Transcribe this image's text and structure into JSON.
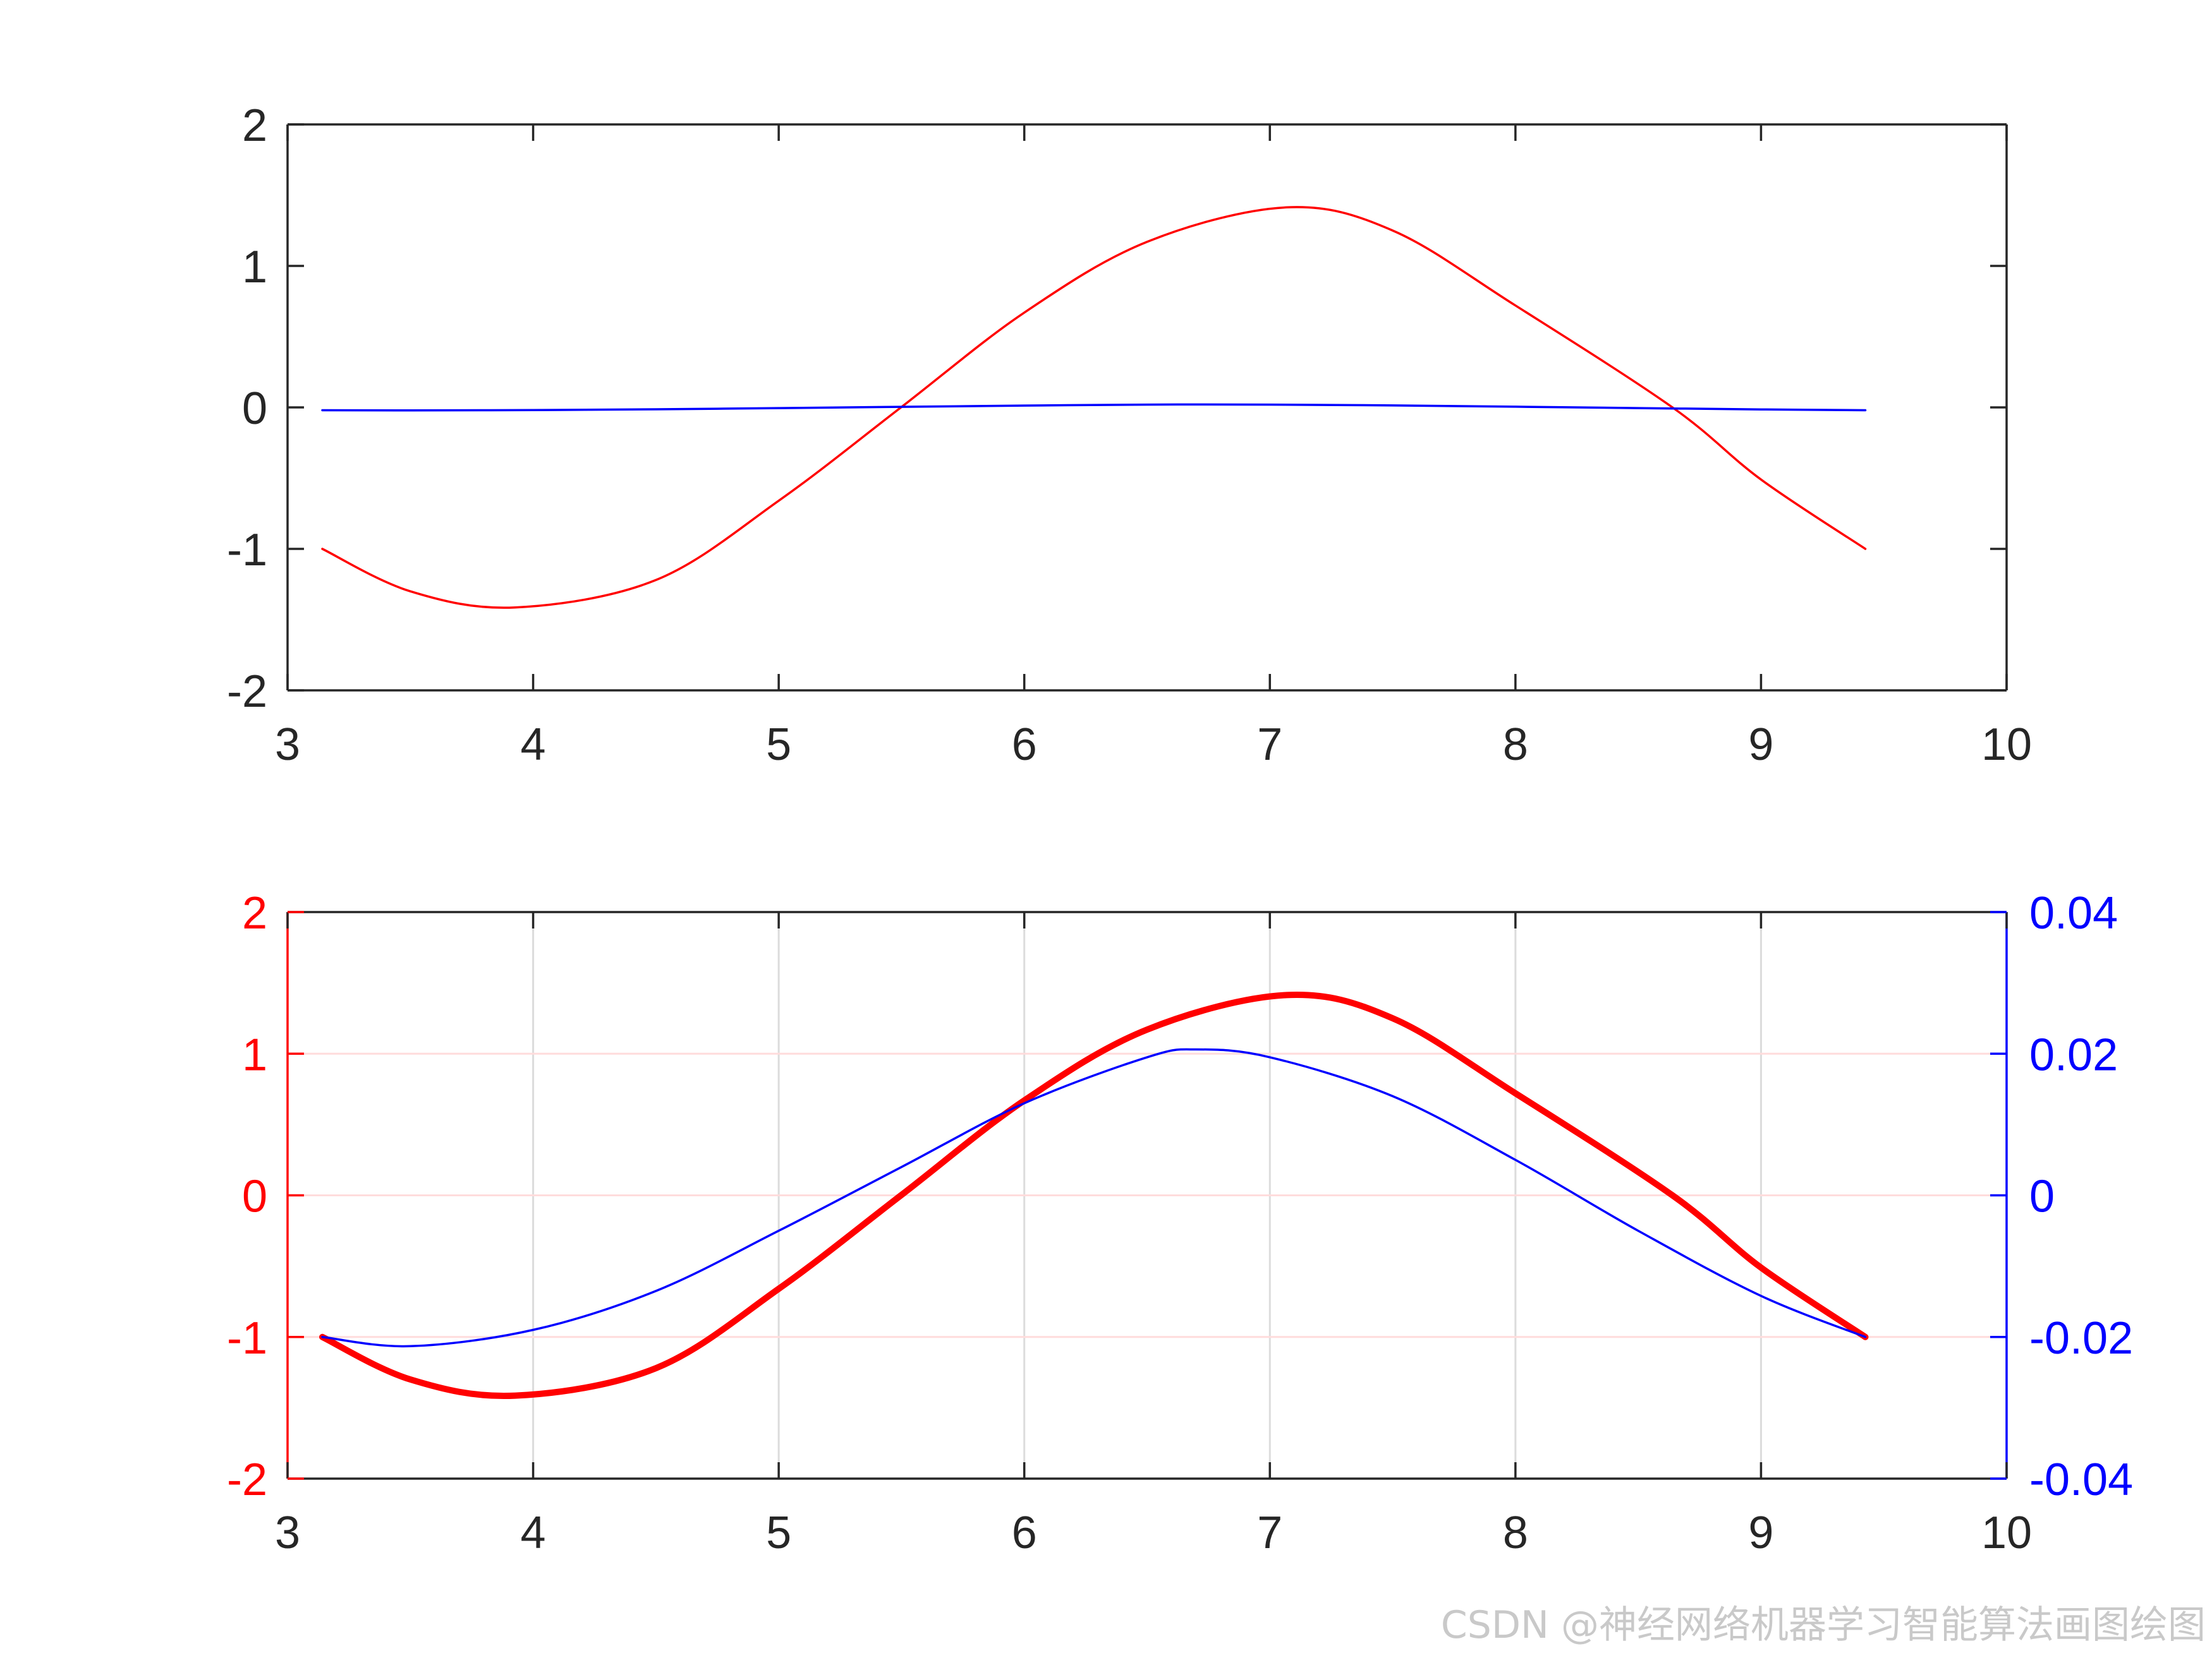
{
  "colors": {
    "axis": "#262626",
    "red": "#ff0000",
    "blue": "#0000ff",
    "grid": "#dcdcdc",
    "grid_red": "#ffdcdc"
  },
  "chart_data": [
    {
      "type": "line",
      "panel": "top",
      "xlim": [
        3,
        10
      ],
      "ylim": [
        -2,
        2
      ],
      "x_ticks": [
        "3",
        "4",
        "5",
        "6",
        "7",
        "8",
        "9",
        "10"
      ],
      "y_ticks": [
        "-2",
        "-1",
        "0",
        "1",
        "2"
      ],
      "grid": false,
      "series": [
        {
          "color": "#ff0000",
          "line_width": "thin",
          "x": [
            3.1416,
            3.5,
            3.927,
            4.5,
            5.0,
            5.4978,
            6.0,
            6.5,
            7.0686,
            7.5,
            8.0,
            8.6394,
            9.0,
            9.4248
          ],
          "y": [
            -1.0,
            -1.3,
            -1.414,
            -1.22,
            -0.66,
            0.0,
            0.67,
            1.17,
            1.414,
            1.25,
            0.72,
            0.0,
            -0.51,
            -1.0
          ]
        },
        {
          "color": "#0000ff",
          "line_width": "thin",
          "x": [
            3.1416,
            3.5,
            4.0,
            4.5,
            5.0,
            5.5,
            6.0,
            6.5,
            6.7,
            7.0,
            7.5,
            8.0,
            8.5,
            9.0,
            9.4248
          ],
          "y": [
            -0.02,
            -0.0213,
            -0.019,
            -0.0135,
            -0.005,
            0.004,
            0.013,
            0.0195,
            0.0206,
            0.0195,
            0.014,
            0.005,
            -0.005,
            -0.0142,
            -0.02
          ]
        }
      ]
    },
    {
      "type": "line",
      "panel": "bottom",
      "xlim": [
        3,
        10
      ],
      "ylim_left": [
        -2,
        2
      ],
      "ylim_right": [
        -0.04,
        0.04
      ],
      "x_ticks": [
        "3",
        "4",
        "5",
        "6",
        "7",
        "8",
        "9",
        "10"
      ],
      "y_ticks_left": [
        "-2",
        "-1",
        "0",
        "1",
        "2"
      ],
      "y_ticks_right": [
        "-0.04",
        "-0.02",
        "0",
        "0.02",
        "0.04"
      ],
      "grid": true,
      "series": [
        {
          "axis": "left",
          "color": "#ff0000",
          "line_width": "thick",
          "x": [
            3.1416,
            3.5,
            3.927,
            4.5,
            5.0,
            5.4978,
            6.0,
            6.5,
            7.0686,
            7.5,
            8.0,
            8.6394,
            9.0,
            9.4248
          ],
          "y": [
            -1.0,
            -1.3,
            -1.414,
            -1.22,
            -0.66,
            0.0,
            0.67,
            1.17,
            1.414,
            1.25,
            0.72,
            0.0,
            -0.51,
            -1.0
          ]
        },
        {
          "axis": "right",
          "color": "#0000ff",
          "line_width": "thin",
          "x": [
            3.1416,
            3.5,
            4.0,
            4.5,
            5.0,
            5.5,
            6.0,
            6.5,
            6.7,
            7.0,
            7.5,
            8.0,
            8.5,
            9.0,
            9.4248
          ],
          "y": [
            -0.02,
            -0.0213,
            -0.019,
            -0.0135,
            -0.005,
            0.004,
            0.013,
            0.0195,
            0.0206,
            0.0195,
            0.014,
            0.005,
            -0.005,
            -0.0142,
            -0.02
          ]
        }
      ]
    }
  ],
  "watermark": "CSDN @神经网络机器学习智能算法画图绘图"
}
